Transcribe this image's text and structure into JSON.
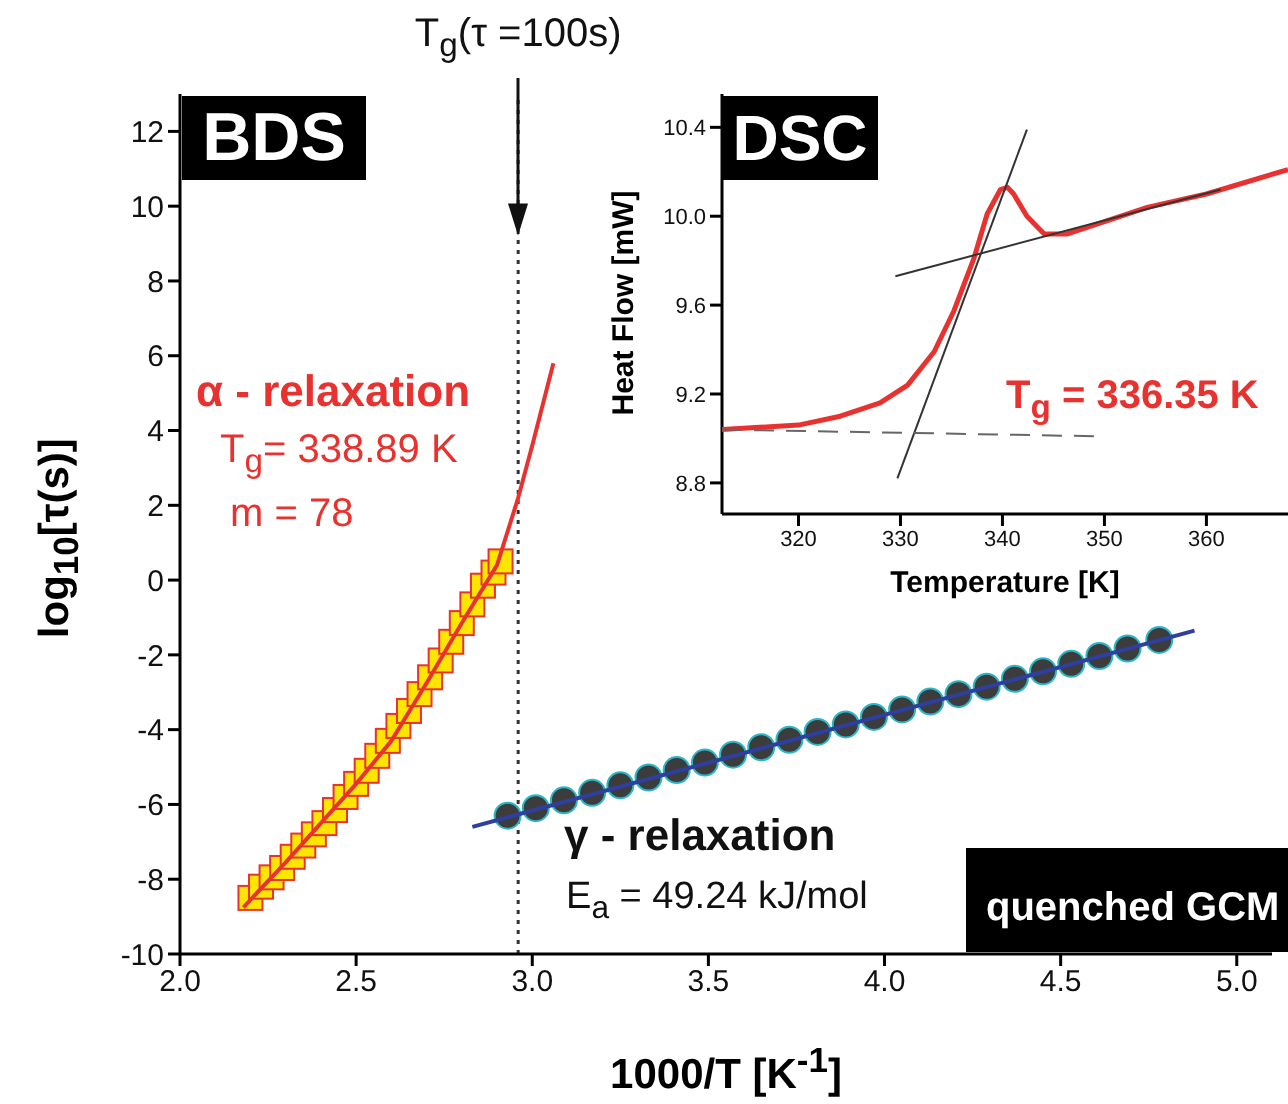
{
  "chart_data": [
    {
      "type": "scatter",
      "xlabel": "1000/T [K$^{-1}$]",
      "ylabel": "log$_{10}$[τ(s)]",
      "xlim": [
        2.0,
        5.1
      ],
      "ylim": [
        -10,
        13
      ],
      "xticks": [
        {
          "value": 2,
          "label": "2.0"
        },
        2.5,
        {
          "value": 3,
          "label": "3.0"
        },
        3.5,
        {
          "value": 4,
          "label": "4.0"
        },
        4.5,
        {
          "value": 5,
          "label": "5.0"
        }
      ],
      "yticks": [
        -10,
        -8,
        -6,
        -4,
        -2,
        0,
        2,
        4,
        6,
        8,
        10,
        12
      ],
      "series": [
        {
          "marker": "square",
          "color": "#ffe600",
          "x": [
            2.2,
            2.23,
            2.26,
            2.29,
            2.32,
            2.35,
            2.38,
            2.41,
            2.44,
            2.47,
            2.5,
            2.53,
            2.56,
            2.59,
            2.62,
            2.65,
            2.68,
            2.71,
            2.74,
            2.77,
            2.8,
            2.83,
            2.86,
            2.89,
            2.91
          ],
          "values": [
            -8.5,
            -8.2,
            -7.95,
            -7.7,
            -7.4,
            -7.1,
            -6.8,
            -6.5,
            -6.15,
            -5.8,
            -5.45,
            -5.1,
            -4.7,
            -4.3,
            -3.9,
            -3.5,
            -3.05,
            -2.6,
            -2.15,
            -1.65,
            -1.15,
            -0.65,
            -0.15,
            0.2,
            0.5
          ]
        },
        {
          "type": "line",
          "color": "#e8322f",
          "x": [
            2.18,
            2.3,
            2.4,
            2.5,
            2.6,
            2.7,
            2.8,
            2.9,
            2.96,
            3.0,
            3.06
          ],
          "values": [
            -8.75,
            -7.55,
            -6.5,
            -5.45,
            -4.3,
            -2.75,
            -1.15,
            0.4,
            2.2,
            3.6,
            5.8
          ]
        },
        {
          "marker": "circle",
          "color": "#3c3c3c",
          "x": [
            2.93,
            3.01,
            3.09,
            3.17,
            3.25,
            3.33,
            3.41,
            3.49,
            3.57,
            3.65,
            3.73,
            3.81,
            3.89,
            3.97,
            4.05,
            4.13,
            4.21,
            4.29,
            4.37,
            4.45,
            4.53,
            4.61,
            4.69,
            4.78
          ],
          "values": [
            -6.3,
            -6.1,
            -5.89,
            -5.69,
            -5.49,
            -5.28,
            -5.08,
            -4.88,
            -4.67,
            -4.47,
            -4.27,
            -4.06,
            -3.86,
            -3.66,
            -3.46,
            -3.25,
            -3.05,
            -2.85,
            -2.64,
            -2.44,
            -2.24,
            -2.03,
            -1.83,
            -1.6
          ]
        },
        {
          "type": "line",
          "color": "#2e3f9e",
          "x": [
            2.83,
            4.88
          ],
          "values": [
            -6.6,
            -1.35
          ]
        }
      ],
      "ref_lines": [
        {
          "axis": "x",
          "value": 2.96,
          "line_style": "dotted",
          "color": "#333333"
        }
      ],
      "annotations": [
        "BDS",
        "α - relaxation",
        "T$_{g}$= 338.89 K",
        "m = 78",
        "γ - relaxation",
        "E$_{a}$ = 49.24 kJ/mol",
        "quenched GCM",
        {
          "text": "T$_{g}$(τ =100s)",
          "x": 2.96,
          "y": 9
        }
      ]
    },
    {
      "type": "line",
      "xlabel": "Temperature [K]",
      "ylabel": "Heat Flow [mW]",
      "xlim": [
        312.5,
        368
      ],
      "ylim": [
        8.66,
        10.55
      ],
      "xticks": [
        320,
        330,
        340,
        350,
        360
      ],
      "yticks": [
        8.8,
        9.2,
        9.6,
        {
          "value": 10,
          "label": "10.0"
        },
        10.4
      ],
      "series": [
        {
          "color": "#e8322f",
          "x": [
            312.5,
            320,
            324.1,
            328,
            330.7,
            333.3,
            335.2,
            337.2,
            338.5,
            339.8,
            340.5,
            341.1,
            342.4,
            344.1,
            346.3,
            350.3,
            354.2,
            360,
            368
          ],
          "values": [
            9.04,
            9.06,
            9.1,
            9.16,
            9.24,
            9.39,
            9.57,
            9.81,
            10.01,
            10.12,
            10.13,
            10.1,
            10.0,
            9.92,
            9.92,
            9.98,
            10.04,
            10.1,
            10.21
          ]
        },
        {
          "color": "#333333",
          "line_style": "solid",
          "x": [
            329.7,
            342.4
          ],
          "values": [
            8.82,
            10.39
          ]
        },
        {
          "color": "#333333",
          "line_style": "solid",
          "x": [
            329.5,
            361.4
          ],
          "values": [
            9.73,
            10.12
          ]
        },
        {
          "color": "#666666",
          "line_style": "dashed",
          "x": [
            312.5,
            349
          ],
          "values": [
            9.04,
            9.01
          ]
        }
      ],
      "annotations": [
        "DSC",
        "T$_{g}$ = 336.35 K"
      ]
    }
  ]
}
